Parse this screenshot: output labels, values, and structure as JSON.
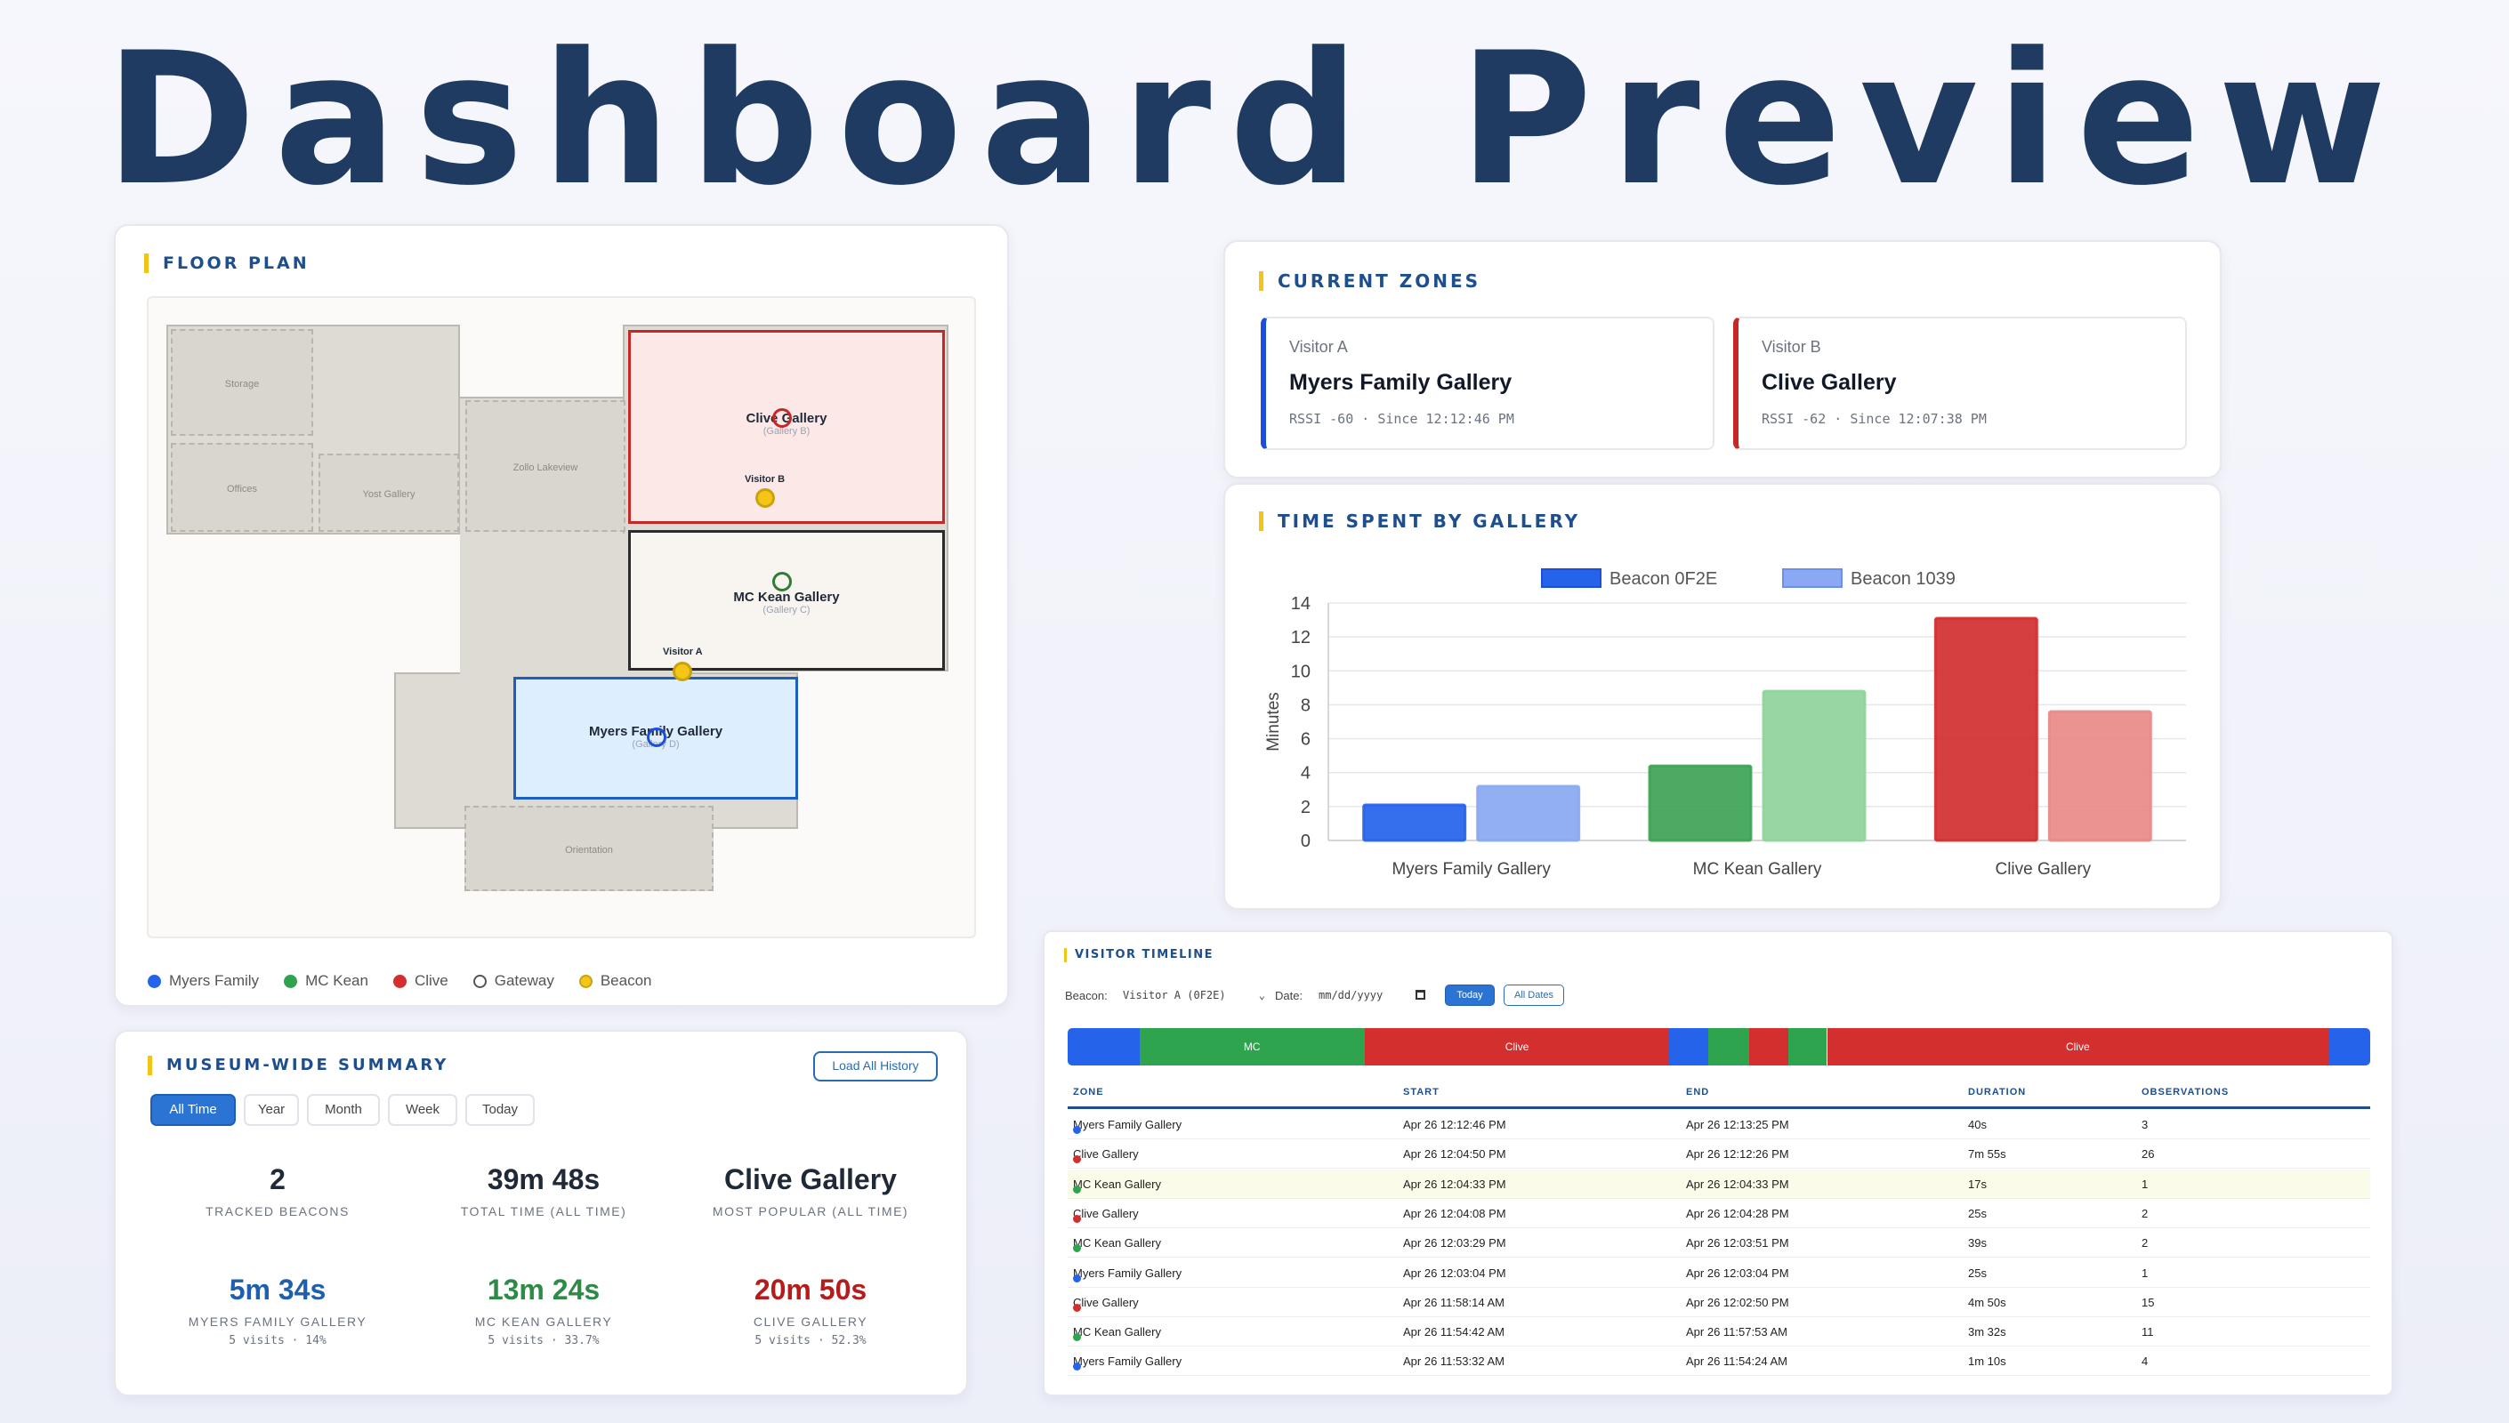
{
  "hero_title": "Dashboard Preview",
  "colors": {
    "myers": "#2563eb",
    "mckean": "#2ea44f",
    "clive": "#d32f2f",
    "beacon": "#f5c518",
    "accent": "#1e4e8c"
  },
  "floor_plan": {
    "title": "FLOOR PLAN",
    "rooms": {
      "storage": "Storage",
      "offices": "Offices",
      "yost": "Yost Gallery",
      "zollo": "Zollo Lakeview",
      "orientation": "Orientation"
    },
    "galleries": {
      "clive": {
        "name": "Clive Gallery",
        "sub": "(Gallery B)"
      },
      "mckean": {
        "name": "MC Kean Gallery",
        "sub": "(Gallery C)"
      },
      "myers": {
        "name": "Myers Family Gallery",
        "sub": "(Gallery D)"
      }
    },
    "visitor_labels": {
      "a": "Visitor A",
      "b": "Visitor B"
    },
    "legend": [
      "Myers Family",
      "MC Kean",
      "Clive",
      "Gateway",
      "Beacon"
    ]
  },
  "current_zones": {
    "title": "CURRENT ZONES",
    "visitors": [
      {
        "visitor": "Visitor A",
        "zone": "Myers Family Gallery",
        "meta": "RSSI -60 · Since 12:12:46 PM",
        "color": "#1d4ed8"
      },
      {
        "visitor": "Visitor B",
        "zone": "Clive Gallery",
        "meta": "RSSI -62 · Since 12:07:38 PM",
        "color": "#c62828"
      }
    ]
  },
  "time_spent": {
    "title": "TIME SPENT BY GALLERY"
  },
  "chart_data": {
    "type": "bar",
    "categories": [
      "Myers Family Gallery",
      "MC Kean Gallery",
      "Clive Gallery"
    ],
    "series": [
      {
        "name": "Beacon 0F2E",
        "values": [
          2.1,
          4.4,
          13.1
        ],
        "colors": [
          "#2563eb",
          "#3da355",
          "#d32f2f"
        ]
      },
      {
        "name": "Beacon 1039",
        "values": [
          3.2,
          8.8,
          7.6
        ],
        "colors": [
          "#8aa8f3",
          "#8fd49b",
          "#e88a87"
        ]
      }
    ],
    "ylabel": "Minutes",
    "ylim": [
      0,
      14
    ],
    "yticks": [
      "0",
      "2",
      "4",
      "6",
      "8",
      "10",
      "12",
      "14"
    ],
    "legend_position": "top",
    "grid": true
  },
  "summary": {
    "title": "MUSEUM-WIDE SUMMARY",
    "load_button": "Load All History",
    "filters": [
      "All Time",
      "Year",
      "Month",
      "Week",
      "Today"
    ],
    "active_filter": "All Time",
    "stats": [
      {
        "value": "2",
        "label": "TRACKED BEACONS"
      },
      {
        "value": "39m 48s",
        "label": "TOTAL TIME (ALL TIME)"
      },
      {
        "value": "Clive Gallery",
        "label": "MOST POPULAR (ALL TIME)"
      }
    ],
    "galleries": [
      {
        "value": "5m 34s",
        "label": "MYERS FAMILY GALLERY",
        "sub": "5 visits · 14%",
        "color": "#1f5fae"
      },
      {
        "value": "13m 24s",
        "label": "MC KEAN GALLERY",
        "sub": "5 visits · 33.7%",
        "color": "#2e8b47"
      },
      {
        "value": "20m 50s",
        "label": "CLIVE GALLERY",
        "sub": "5 visits · 52.3%",
        "color": "#b71c1c"
      }
    ]
  },
  "timeline": {
    "title": "VISITOR TIMELINE",
    "beacon_label": "Beacon:",
    "beacon_value": "Visitor A (0F2E)",
    "date_label": "Date:",
    "date_placeholder": "mm/dd/yyyy",
    "today_button": "Today",
    "all_dates_button": "All Dates",
    "segments": [
      {
        "zone": "myers",
        "start": 0,
        "end": 5.5,
        "label": ""
      },
      {
        "zone": "mckean",
        "start": 5.5,
        "end": 22.8,
        "label": "MC"
      },
      {
        "zone": "clive",
        "start": 22.8,
        "end": 46.2,
        "label": "Clive"
      },
      {
        "zone": "myers",
        "start": 46.2,
        "end": 49.2,
        "label": ""
      },
      {
        "zone": "mckean",
        "start": 49.2,
        "end": 52.3,
        "label": ""
      },
      {
        "zone": "clive",
        "start": 52.3,
        "end": 55.3,
        "label": ""
      },
      {
        "zone": "mckean",
        "start": 55.3,
        "end": 58.3,
        "label": ""
      },
      {
        "zone": "clive",
        "start": 58.3,
        "end": 96.8,
        "label": "Clive"
      },
      {
        "zone": "myers",
        "start": 96.8,
        "end": 100,
        "label": ""
      }
    ],
    "columns": [
      "ZONE",
      "START",
      "END",
      "DURATION",
      "OBSERVATIONS"
    ],
    "rows": [
      {
        "zone": "Myers Family Gallery",
        "key": "myers",
        "start": "Apr 26 12:12:46 PM",
        "end": "Apr 26 12:13:25 PM",
        "duration": "40s",
        "obs": "3"
      },
      {
        "zone": "Clive Gallery",
        "key": "clive",
        "start": "Apr 26 12:04:50 PM",
        "end": "Apr 26 12:12:26 PM",
        "duration": "7m 55s",
        "obs": "26"
      },
      {
        "zone": "MC Kean Gallery",
        "key": "mckean",
        "start": "Apr 26 12:04:33 PM",
        "end": "Apr 26 12:04:33 PM",
        "duration": "17s",
        "obs": "1"
      },
      {
        "zone": "Clive Gallery",
        "key": "clive",
        "start": "Apr 26 12:04:08 PM",
        "end": "Apr 26 12:04:28 PM",
        "duration": "25s",
        "obs": "2"
      },
      {
        "zone": "MC Kean Gallery",
        "key": "mckean",
        "start": "Apr 26 12:03:29 PM",
        "end": "Apr 26 12:03:51 PM",
        "duration": "39s",
        "obs": "2"
      },
      {
        "zone": "Myers Family Gallery",
        "key": "myers",
        "start": "Apr 26 12:03:04 PM",
        "end": "Apr 26 12:03:04 PM",
        "duration": "25s",
        "obs": "1"
      },
      {
        "zone": "Clive Gallery",
        "key": "clive",
        "start": "Apr 26 11:58:14 AM",
        "end": "Apr 26 12:02:50 PM",
        "duration": "4m 50s",
        "obs": "15"
      },
      {
        "zone": "MC Kean Gallery",
        "key": "mckean",
        "start": "Apr 26 11:54:42 AM",
        "end": "Apr 26 11:57:53 AM",
        "duration": "3m 32s",
        "obs": "11"
      },
      {
        "zone": "Myers Family Gallery",
        "key": "myers",
        "start": "Apr 26 11:53:32 AM",
        "end": "Apr 26 11:54:24 AM",
        "duration": "1m 10s",
        "obs": "4"
      }
    ]
  }
}
